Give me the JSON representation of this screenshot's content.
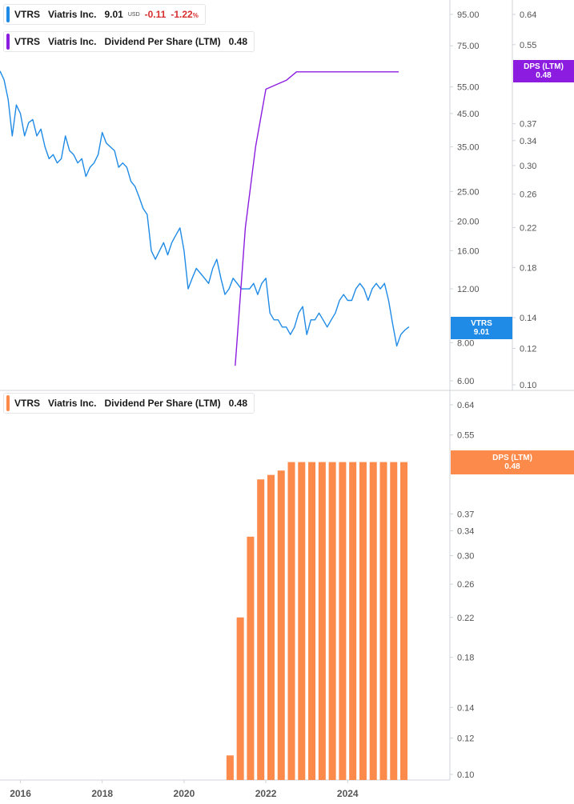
{
  "colors": {
    "price_line": "#1f8be6",
    "dps_line": "#8c1de0",
    "dps_bar": "#fc8a4a",
    "grid": "#cfd3d8",
    "axis_text": "#555555"
  },
  "top_legend": {
    "price": {
      "ticker": "VTRS",
      "name": "Viatris Inc.",
      "price": "9.01",
      "currency": "USD",
      "change": "-0.11",
      "change_pct": "-1.22",
      "pct_sign": "%"
    },
    "dps": {
      "ticker": "VTRS",
      "name": "Viatris Inc.",
      "metric": "Dividend Per Share (LTM)",
      "value": "0.48"
    }
  },
  "bottom_legend": {
    "ticker": "VTRS",
    "name": "Viatris Inc.",
    "metric": "Dividend Per Share (LTM)",
    "value": "0.48"
  },
  "tags": {
    "price_tag": {
      "line1": "VTRS",
      "line2": "9.01"
    },
    "dps_tag_top": {
      "line1": "DPS (LTM)",
      "line2": "0.48"
    },
    "dps_tag_bottom": {
      "line1": "DPS (LTM)",
      "line2": "0.48"
    }
  },
  "chart_data": [
    {
      "type": "line",
      "title": "",
      "scale": "log",
      "x_range": [
        2015.5,
        2026.5
      ],
      "series": [
        {
          "name": "VTRS",
          "axis": "left",
          "ylim": [
            6,
            95
          ],
          "ticks": [
            "95.00",
            "75.00",
            "55.00",
            "45.00",
            "35.00",
            "25.00",
            "20.00",
            "16.00",
            "12.00",
            "8.00",
            "6.00"
          ],
          "x": [
            2015.5,
            2015.6,
            2015.7,
            2015.8,
            2015.9,
            2016.0,
            2016.1,
            2016.2,
            2016.3,
            2016.4,
            2016.5,
            2016.6,
            2016.7,
            2016.8,
            2016.9,
            2017.0,
            2017.1,
            2017.2,
            2017.3,
            2017.4,
            2017.5,
            2017.6,
            2017.7,
            2017.8,
            2017.9,
            2018.0,
            2018.1,
            2018.2,
            2018.3,
            2018.4,
            2018.5,
            2018.6,
            2018.7,
            2018.8,
            2018.9,
            2019.0,
            2019.1,
            2019.2,
            2019.3,
            2019.4,
            2019.5,
            2019.6,
            2019.7,
            2019.8,
            2019.9,
            2020.0,
            2020.1,
            2020.2,
            2020.3,
            2020.4,
            2020.5,
            2020.6,
            2020.7,
            2020.8,
            2020.9,
            2021.0,
            2021.1,
            2021.2,
            2021.3,
            2021.4,
            2021.5,
            2021.6,
            2021.7,
            2021.8,
            2021.9,
            2022.0,
            2022.1,
            2022.2,
            2022.3,
            2022.4,
            2022.5,
            2022.6,
            2022.7,
            2022.8,
            2022.9,
            2023.0,
            2023.1,
            2023.2,
            2023.3,
            2023.4,
            2023.5,
            2023.6,
            2023.7,
            2023.8,
            2023.9,
            2024.0,
            2024.1,
            2024.2,
            2024.3,
            2024.4,
            2024.5,
            2024.6,
            2024.7,
            2024.8,
            2024.9,
            2025.0,
            2025.1,
            2025.2,
            2025.3,
            2025.4,
            2025.5
          ],
          "values": [
            62,
            58,
            50,
            38,
            48,
            45,
            38,
            42,
            43,
            38,
            40,
            35,
            32,
            33,
            31,
            32,
            38,
            34,
            33,
            31,
            32,
            28,
            30,
            31,
            33,
            39,
            36,
            35,
            34,
            30,
            31,
            30,
            27,
            26,
            24,
            22,
            21,
            16,
            15,
            16,
            17,
            15.5,
            17,
            18,
            19,
            16,
            12,
            13,
            14,
            13.5,
            13,
            12.5,
            14,
            15,
            13,
            11.5,
            12,
            13,
            12.5,
            12,
            12,
            12,
            12.5,
            11.5,
            12.5,
            13,
            10,
            9.5,
            9.5,
            9,
            9,
            8.5,
            9,
            10,
            10.5,
            8.5,
            9.5,
            9.5,
            10,
            9.5,
            9,
            9.5,
            10,
            11,
            11.5,
            11,
            11,
            12,
            12.5,
            12,
            11,
            12,
            12.5,
            12,
            12.5,
            11,
            9.2,
            7.8,
            8.5,
            8.8,
            9.01
          ]
        },
        {
          "name": "Dividend Per Share (LTM)",
          "axis": "right",
          "ylim": [
            0.1,
            0.64
          ],
          "ticks": [
            "0.64",
            "0.55",
            "0.37",
            "0.34",
            "0.30",
            "0.26",
            "0.22",
            "0.18",
            "0.14",
            "0.12",
            "0.10"
          ],
          "x": [
            2021.25,
            2021.5,
            2021.75,
            2022.0,
            2022.25,
            2022.5,
            2022.75,
            2023.0,
            2023.5,
            2024.0,
            2024.5,
            2025.0,
            2025.25
          ],
          "values": [
            0.11,
            0.22,
            0.33,
            0.44,
            0.45,
            0.46,
            0.48,
            0.48,
            0.48,
            0.48,
            0.48,
            0.48,
            0.48
          ]
        }
      ]
    },
    {
      "type": "bar",
      "title": "",
      "scale": "log",
      "ylim": [
        0.1,
        0.64
      ],
      "ticks": [
        "0.64",
        "0.55",
        "0.37",
        "0.34",
        "0.30",
        "0.26",
        "0.22",
        "0.18",
        "0.14",
        "0.12",
        "0.10"
      ],
      "x_ticks": [
        "2016",
        "2018",
        "2020",
        "2022",
        "2024"
      ],
      "x_range": [
        2015.5,
        2026.5
      ],
      "series": [
        {
          "name": "Dividend Per Share (LTM)",
          "x": [
            2021.0,
            2021.25,
            2021.5,
            2021.75,
            2022.0,
            2022.25,
            2022.5,
            2022.75,
            2023.0,
            2023.25,
            2023.5,
            2023.75,
            2024.0,
            2024.25,
            2024.5,
            2024.75,
            2025.0,
            2025.25
          ],
          "values": [
            0.11,
            0.22,
            0.33,
            0.44,
            0.45,
            0.46,
            0.48,
            0.48,
            0.48,
            0.48,
            0.48,
            0.48,
            0.48,
            0.48,
            0.48,
            0.48,
            0.48,
            0.48
          ]
        }
      ]
    }
  ]
}
